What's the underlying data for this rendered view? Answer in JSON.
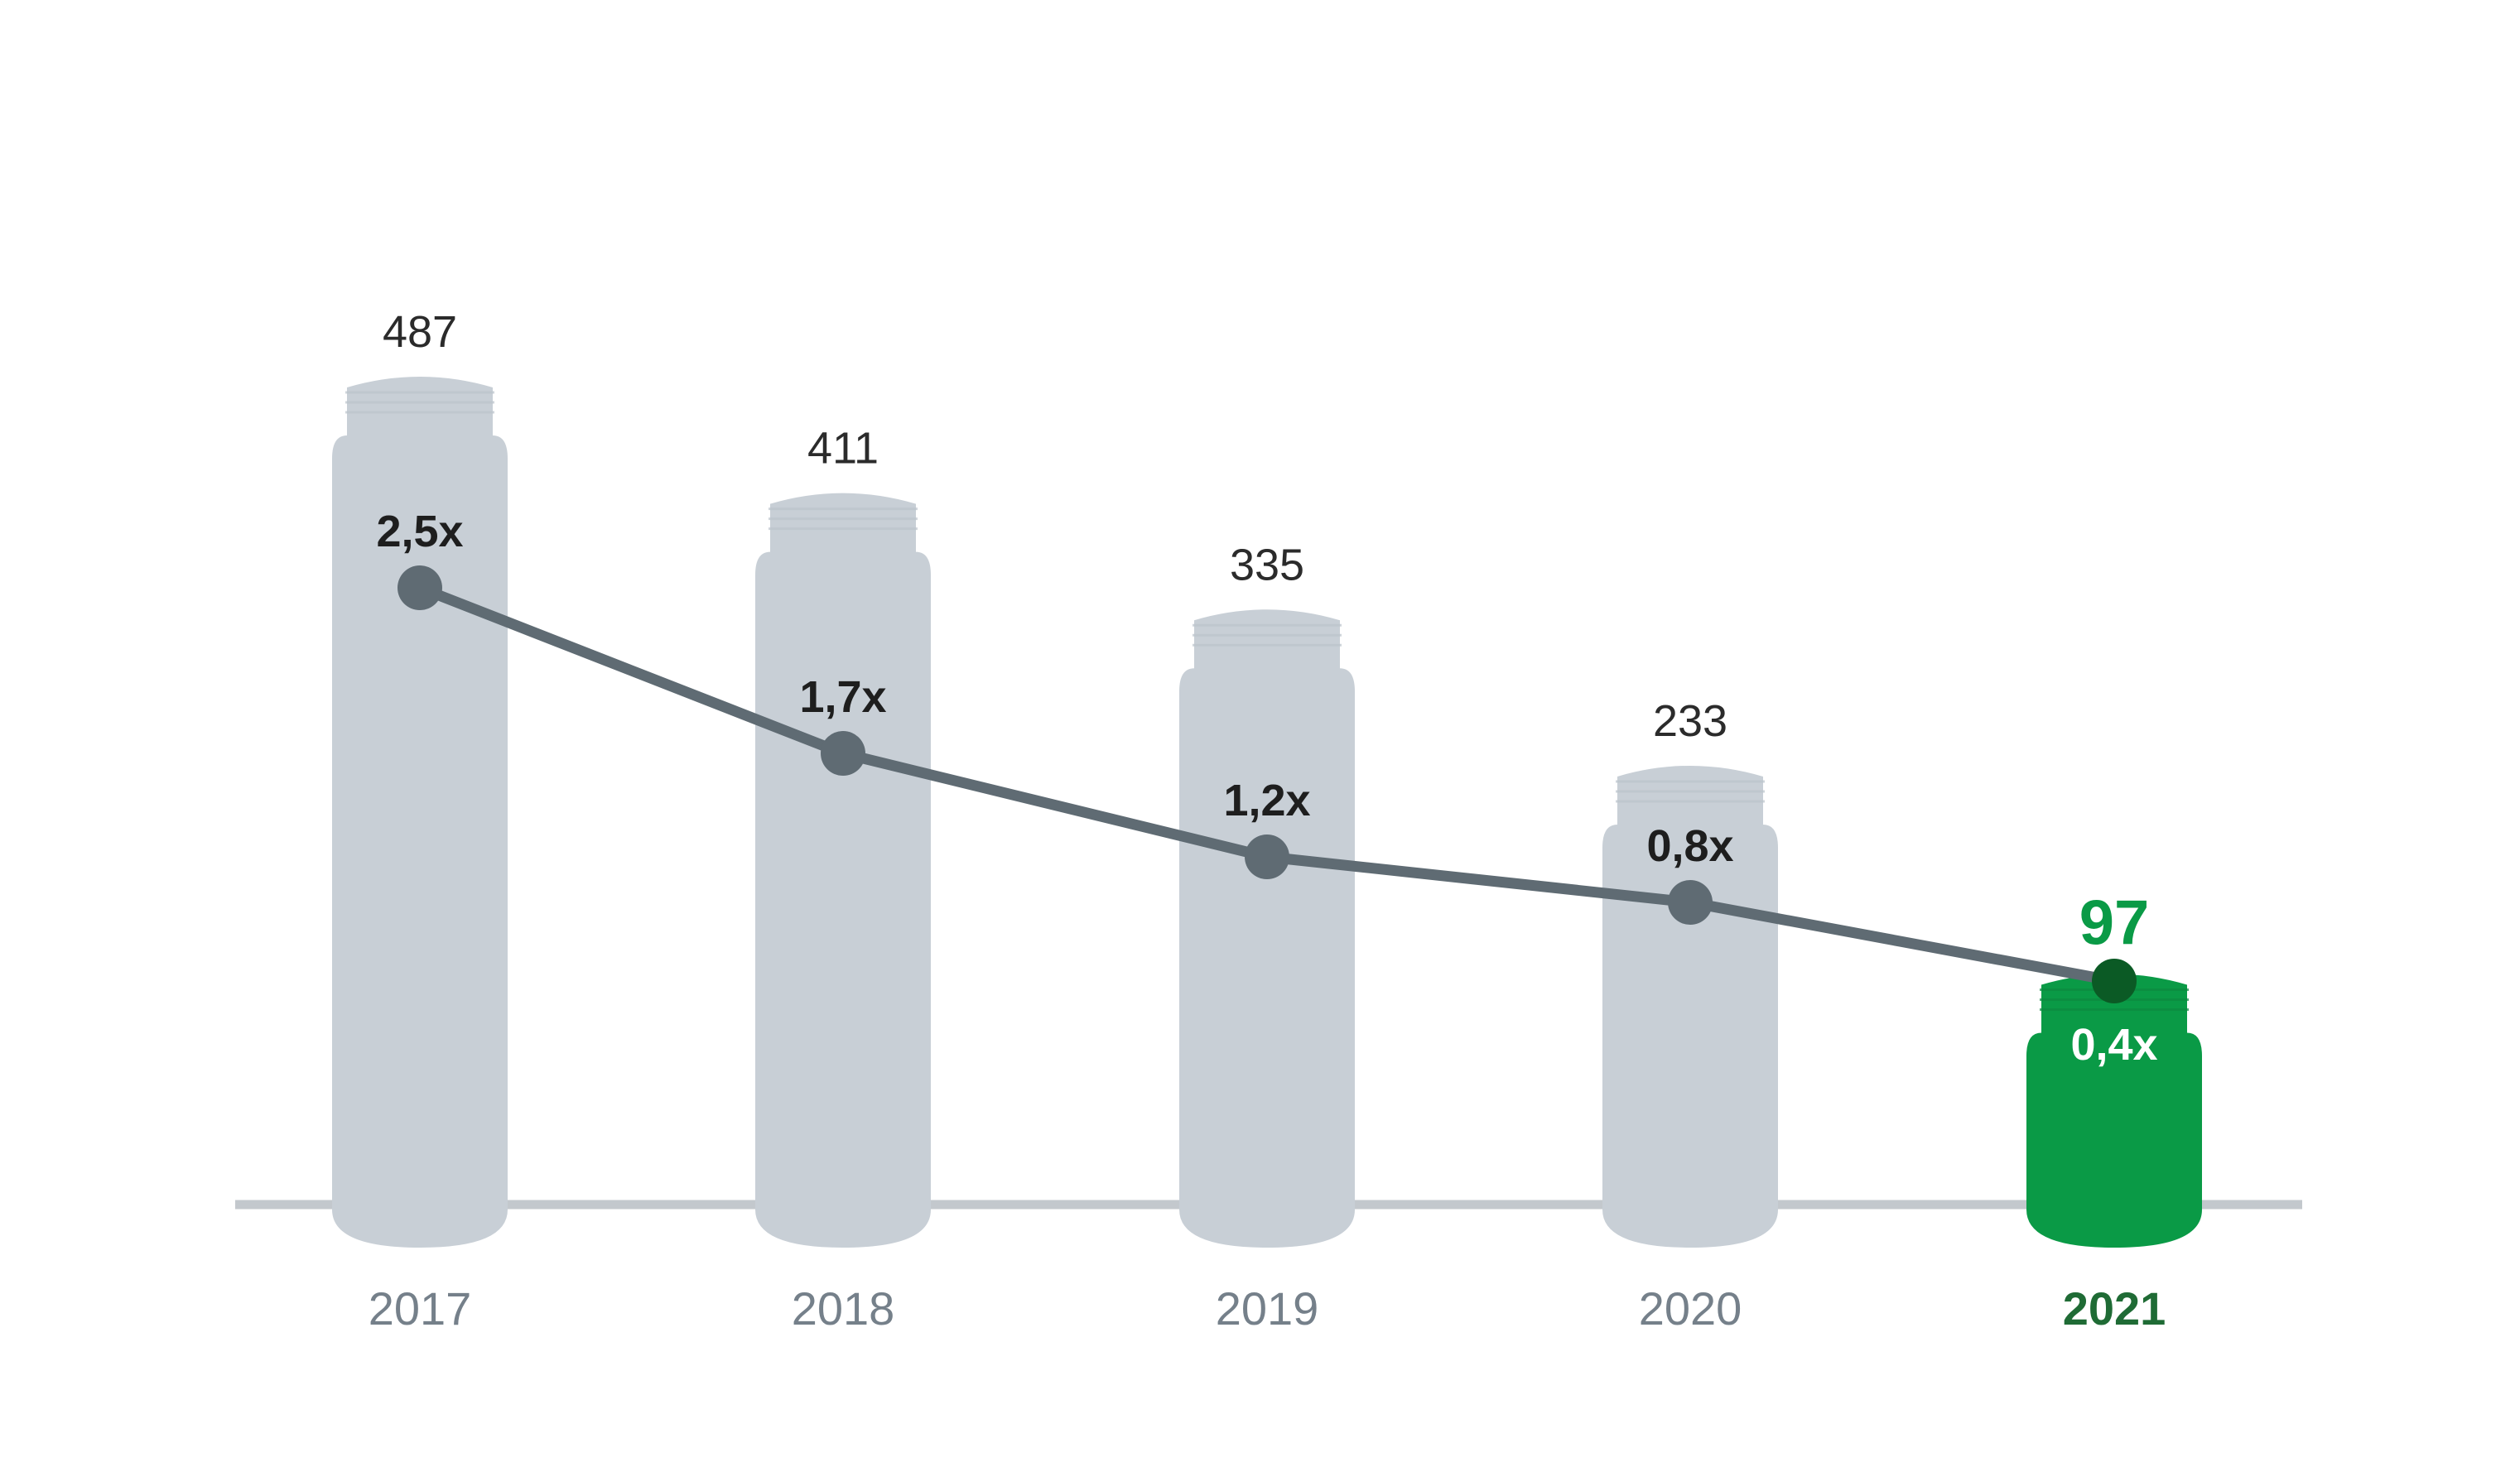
{
  "chart_data": {
    "type": "bar",
    "title": "",
    "xlabel": "",
    "ylabel": "",
    "categories": [
      "2017",
      "2018",
      "2019",
      "2020",
      "2021"
    ],
    "series": [
      {
        "values": [
          487,
          411,
          335,
          233,
          97
        ],
        "value_labels": [
          "487",
          "411",
          "335",
          "233",
          "97"
        ]
      },
      {
        "values": [
          2.5,
          1.7,
          1.2,
          0.8,
          0.4
        ],
        "value_labels": [
          "2,5x",
          "1,7x",
          "1,2x",
          "0,8x",
          "0,4x"
        ]
      }
    ],
    "highlight_category": "2021",
    "grid": false,
    "legend": "none",
    "colors": {
      "bar": "#c8cfd6",
      "bar_highlight": "#0a9a46",
      "baseline": "#c3c8cd",
      "line": "#5f6b73",
      "marker": "#5f6b73",
      "marker_highlight": "#0b5a25",
      "value_label": "#2b2b2b",
      "value_label_highlight": "#0a9a46",
      "multiplier_label": "#1e1e1e",
      "multiplier_label_highlight": "#ffffff",
      "category_label": "#75808a",
      "category_label_highlight": "#1f6b35"
    }
  }
}
